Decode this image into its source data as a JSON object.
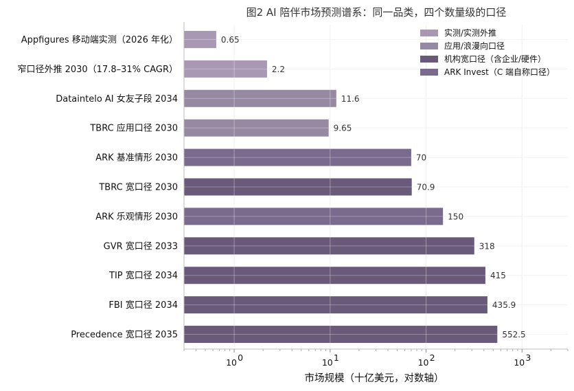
{
  "chart_data": {
    "type": "bar",
    "orientation": "horizontal",
    "title": "图2 AI 陪伴市场预测谱系：同一品类，四个数量级的口径",
    "xlabel": "市场规模（十亿美元，对数轴）",
    "ylabel": "",
    "x_scale": "log",
    "xlim": [
      0.3,
      3000
    ],
    "grid": true,
    "x_ticks": [
      {
        "base": "10",
        "exp": "0"
      },
      {
        "base": "10",
        "exp": "1"
      },
      {
        "base": "10",
        "exp": "2"
      },
      {
        "base": "10",
        "exp": "3"
      }
    ],
    "legend": {
      "placement": "top-right",
      "entries": [
        {
          "label": "实测/实测外推",
          "color": "#a898b4"
        },
        {
          "label": "应用/浪漫向口径",
          "color": "#968aa3"
        },
        {
          "label": "机构宽口径（含企业/硬件）",
          "color": "#6a5a7a"
        },
        {
          "label": "ARK Invest（C 端自称口径）",
          "color": "#7a6a8d"
        }
      ]
    },
    "categories": [
      "Appfigures 移动端实测（2026 年化）",
      "窄口径外推 2030（17.8–31% CAGR）",
      "Dataintelo AI 女友子段 2034",
      "TBRC 应用口径 2030",
      "ARK 基准情形 2030",
      "TBRC 宽口径 2030",
      "ARK 乐观情形 2030",
      "GVR 宽口径 2033",
      "TIP 宽口径 2034",
      "FBI 宽口径 2034",
      "Precedence 宽口径 2035"
    ],
    "values": [
      0.65,
      2.2,
      11.6,
      9.65,
      70,
      70.9,
      150,
      318,
      415,
      435.9,
      552.5
    ],
    "value_labels": [
      "0.65",
      "2.2",
      "11.6",
      "9.65",
      "70",
      "70.9",
      "150",
      "318",
      "415",
      "435.9",
      "552.5"
    ],
    "groups": [
      "实测/实测外推",
      "实测/实测外推",
      "应用/浪漫向口径",
      "应用/浪漫向口径",
      "ARK Invest（C 端自称口径）",
      "机构宽口径（含企业/硬件）",
      "ARK Invest（C 端自称口径）",
      "机构宽口径（含企业/硬件）",
      "机构宽口径（含企业/硬件）",
      "机构宽口径（含企业/硬件）",
      "机构宽口径（含企业/硬件）"
    ]
  }
}
